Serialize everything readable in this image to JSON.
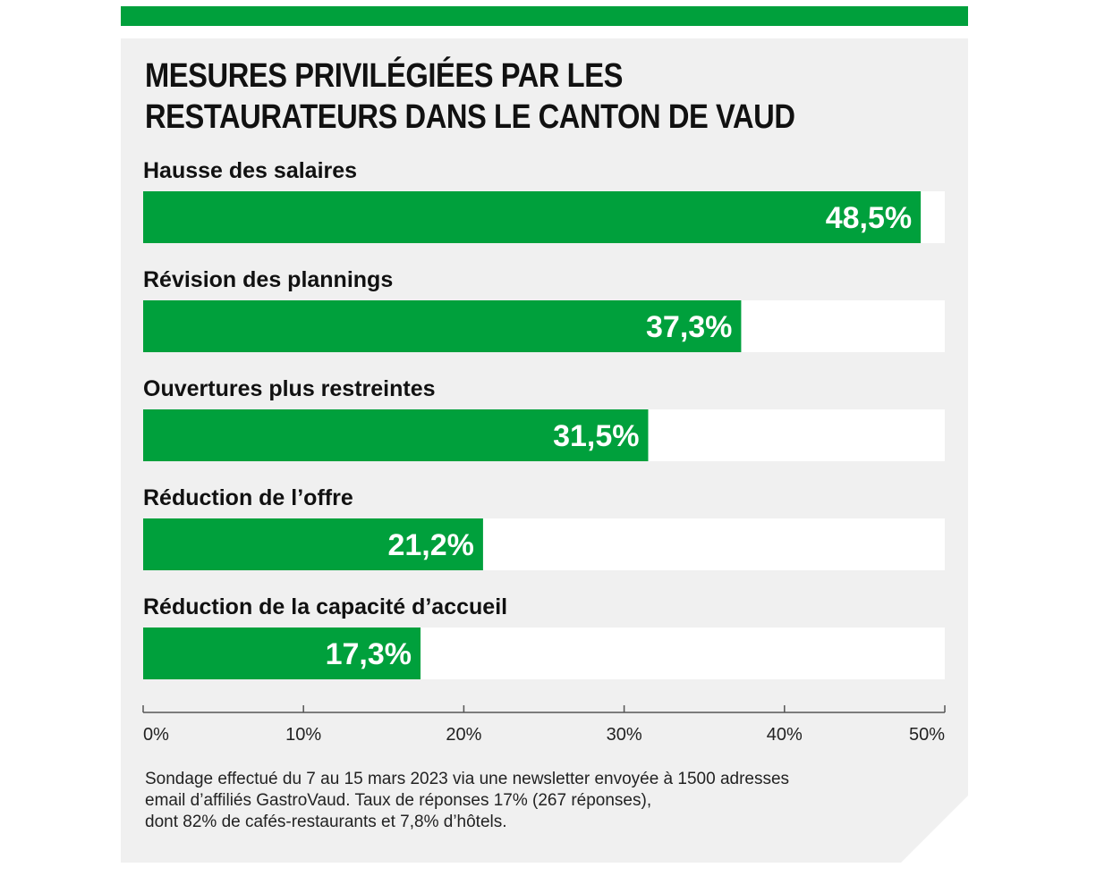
{
  "colors": {
    "accent": "#00a03c",
    "card_bg": "#f0f0f0",
    "track": "#ffffff",
    "text": "#111111"
  },
  "chart_data": {
    "type": "bar",
    "orientation": "horizontal",
    "title": "MESURES PRIVILÉGIÉES PAR LES RESTAURATEURS DANS LE CANTON DE VAUD",
    "categories": [
      "Hausse des salaires",
      "Révision des plannings",
      "Ouvertures plus restreintes",
      "Réduction de l’offre",
      "Réduction de la capacité d’accueil"
    ],
    "values": [
      48.5,
      37.3,
      31.5,
      21.2,
      17.3
    ],
    "value_labels": [
      "48,5%",
      "37,3%",
      "31,5%",
      "21,2%",
      "17,3%"
    ],
    "xlim": [
      0,
      50
    ],
    "xticks": [
      0,
      10,
      20,
      30,
      40,
      50
    ],
    "xtick_labels": [
      "0%",
      "10%",
      "20%",
      "30%",
      "40%",
      "50%"
    ],
    "grid": false,
    "legend": "none"
  },
  "footnote": {
    "lines": [
      "Sondage effectué du 7 au 15 mars 2023 via une newsletter envoyée à 1500 adresses",
      "email d’affiliés GastroVaud. Taux de réponses 17% (267 réponses),",
      "dont 82% de cafés-restaurants et 7,8% d’hôtels."
    ]
  }
}
